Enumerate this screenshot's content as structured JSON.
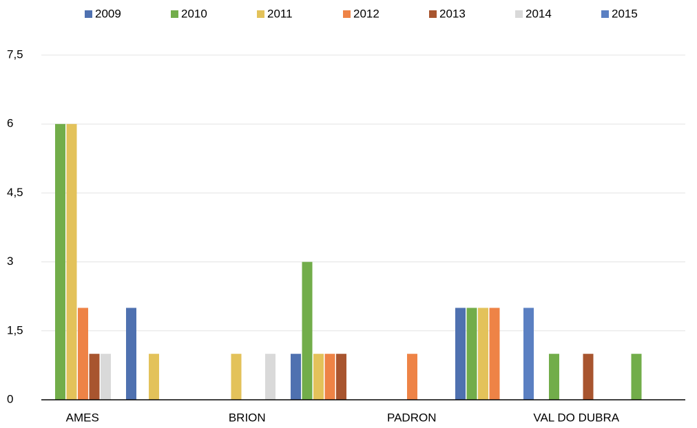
{
  "chart_data": {
    "type": "bar",
    "categories": [
      "AMES",
      null,
      "BRION",
      null,
      "PADRON",
      null,
      "VAL DO DUBRA",
      null
    ],
    "series": [
      {
        "name": "2009",
        "color": "#4f71b0",
        "values": [
          0,
          2,
          0,
          1,
          0,
          2,
          0,
          0
        ]
      },
      {
        "name": "2010",
        "color": "#72ad4a",
        "values": [
          6,
          0,
          0,
          3,
          0,
          2,
          1,
          1
        ]
      },
      {
        "name": "2011",
        "color": "#e3c25a",
        "values": [
          6,
          1,
          1,
          1,
          0,
          2,
          0,
          0
        ]
      },
      {
        "name": "2012",
        "color": "#ee8346",
        "values": [
          2,
          0,
          0,
          1,
          1,
          2,
          0,
          0
        ]
      },
      {
        "name": "2013",
        "color": "#a8552f",
        "values": [
          1,
          0,
          0,
          1,
          0,
          0,
          1,
          0
        ]
      },
      {
        "name": "2014",
        "color": "#d9d9d9",
        "values": [
          1,
          0,
          1,
          0,
          0,
          0,
          0,
          0
        ]
      },
      {
        "name": "2015",
        "color": "#5b80c2",
        "values": [
          0,
          0,
          0,
          0,
          0,
          2,
          0,
          0
        ]
      }
    ],
    "ylim": [
      0,
      7.5
    ],
    "yticks": [
      0,
      {
        "value": 1.5,
        "label": "1,5"
      },
      3,
      {
        "value": 4.5,
        "label": "4,5"
      },
      6,
      {
        "value": 7.5,
        "label": "7,5"
      }
    ],
    "grid": true,
    "legend": "top"
  }
}
